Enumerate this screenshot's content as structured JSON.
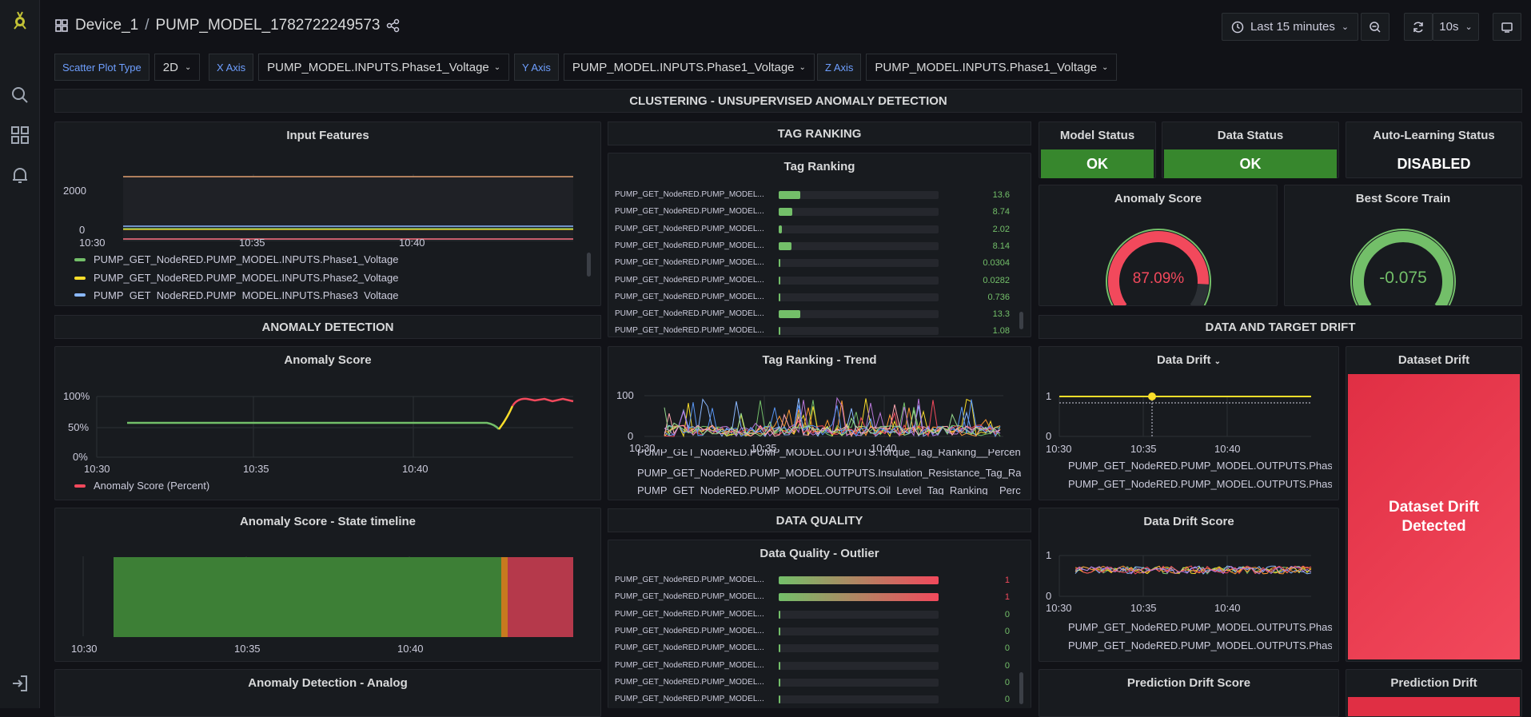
{
  "nav": {
    "breadcrumb_device": "Device_1",
    "breadcrumb_sep": "/",
    "breadcrumb_model": "PUMP_MODEL_1782722249573",
    "time_range": "Last 15 minutes",
    "refresh": "10s"
  },
  "vars": {
    "scatter_label": "Scatter Plot Type",
    "scatter_value": "2D",
    "x_label": "X Axis",
    "x_value": "PUMP_MODEL.INPUTS.Phase1_Voltage",
    "y_label": "Y Axis",
    "y_value": "PUMP_MODEL.INPUTS.Phase1_Voltage",
    "z_label": "Z Axis",
    "z_value": "PUMP_MODEL.INPUTS.Phase1_Voltage"
  },
  "rows": {
    "clustering": "CLUSTERING - UNSUPERVISED ANOMALY DETECTION",
    "tag_ranking": "TAG RANKING",
    "anomaly_detection": "ANOMALY DETECTION",
    "data_target_drift": "DATA AND TARGET DRIFT",
    "data_quality": "DATA QUALITY"
  },
  "panels": {
    "input_features": {
      "title": "Input Features",
      "y_ticks": [
        "2000",
        "0"
      ],
      "x_ticks": [
        "10:30",
        "10:35",
        "10:40"
      ],
      "legend": [
        {
          "label": "PUMP_GET_NodeRED.PUMP_MODEL.INPUTS.Phase1_Voltage",
          "color": "#73bf69"
        },
        {
          "label": "PUMP_GET_NodeRED.PUMP_MODEL.INPUTS.Phase2_Voltage",
          "color": "#fade2a"
        },
        {
          "label": "PUMP_GET_NodeRED.PUMP_MODEL.INPUTS.Phase3_Voltage",
          "color": "#8ab8ff"
        }
      ]
    },
    "tag_ranking": {
      "title": "Tag Ranking",
      "rows": [
        {
          "label": "PUMP_GET_NodeRED.PUMP_MODEL...",
          "value": "13.6",
          "fraction": 0.136
        },
        {
          "label": "PUMP_GET_NodeRED.PUMP_MODEL...",
          "value": "8.74",
          "fraction": 0.087
        },
        {
          "label": "PUMP_GET_NodeRED.PUMP_MODEL...",
          "value": "2.02",
          "fraction": 0.02
        },
        {
          "label": "PUMP_GET_NodeRED.PUMP_MODEL...",
          "value": "8.14",
          "fraction": 0.081
        },
        {
          "label": "PUMP_GET_NodeRED.PUMP_MODEL...",
          "value": "0.0304",
          "fraction": 0.003
        },
        {
          "label": "PUMP_GET_NodeRED.PUMP_MODEL...",
          "value": "0.0282",
          "fraction": 0.003
        },
        {
          "label": "PUMP_GET_NodeRED.PUMP_MODEL...",
          "value": "0.736",
          "fraction": 0.007
        },
        {
          "label": "PUMP_GET_NodeRED.PUMP_MODEL...",
          "value": "13.3",
          "fraction": 0.133
        },
        {
          "label": "PUMP_GET_NodeRED.PUMP_MODEL...",
          "value": "1.08",
          "fraction": 0.011
        }
      ]
    },
    "model_status": {
      "title": "Model Status",
      "value": "OK"
    },
    "data_status": {
      "title": "Data Status",
      "value": "OK"
    },
    "auto_learning": {
      "title": "Auto-Learning Status",
      "value": "DISABLED"
    },
    "anomaly_gauge": {
      "title": "Anomaly Score",
      "value": "87.09%",
      "fraction": 0.8709,
      "color": "#f2495c"
    },
    "best_score": {
      "title": "Best Score Train",
      "value": "-0.075",
      "fraction": 1.0,
      "color": "#73bf69"
    },
    "anomaly_score": {
      "title": "Anomaly Score",
      "y_ticks": [
        "100%",
        "50%",
        "0%"
      ],
      "x_ticks": [
        "10:30",
        "10:35",
        "10:40"
      ],
      "legend": "Anomaly Score (Percent)",
      "color": "#f2495c"
    },
    "tag_trend": {
      "title": "Tag Ranking - Trend",
      "y_ticks": [
        "100",
        "0"
      ],
      "x_ticks": [
        "10:30",
        "10:35",
        "10:40"
      ],
      "legend": [
        {
          "label": "PUMP_GET_NodeRED.PUMP_MODEL.OUTPUTS.Torque_Tag_Ranking__Percent",
          "color": "#f2495c"
        },
        {
          "label": "PUMP_GET_NodeRED.PUMP_MODEL.OUTPUTS.Insulation_Resistance_Tag_Ranking",
          "color": "#8ab8ff"
        },
        {
          "label": "PUMP_GET_NodeRED.PUMP_MODEL.OUTPUTS.Oil_Level_Tag_Ranking__Percent",
          "color": "#ffa6b0"
        }
      ]
    },
    "data_drift": {
      "title": "Data Drift",
      "y_ticks": [
        "1",
        "0"
      ],
      "x_ticks": [
        "10:30",
        "10:35",
        "10:40"
      ],
      "legend": [
        {
          "label": "PUMP_GET_NodeRED.PUMP_MODEL.OUTPUTS.Phase",
          "color": "#73bf69"
        },
        {
          "label": "PUMP_GET_NodeRED.PUMP_MODEL.OUTPUTS.Phase",
          "color": "#fade2a"
        }
      ]
    },
    "dataset_drift": {
      "title": "Dataset Drift",
      "value": "Dataset Drift Detected"
    },
    "state_timeline": {
      "title": "Anomaly Score - State timeline",
      "x_ticks": [
        "10:30",
        "10:35",
        "10:40"
      ]
    },
    "dq_outlier": {
      "title": "Data Quality - Outlier",
      "rows": [
        {
          "label": "PUMP_GET_NodeRED.PUMP_MODEL...",
          "value": "1",
          "fraction": 1.0
        },
        {
          "label": "PUMP_GET_NodeRED.PUMP_MODEL...",
          "value": "1",
          "fraction": 1.0
        },
        {
          "label": "PUMP_GET_NodeRED.PUMP_MODEL...",
          "value": "0",
          "fraction": 0
        },
        {
          "label": "PUMP_GET_NodeRED.PUMP_MODEL...",
          "value": "0",
          "fraction": 0
        },
        {
          "label": "PUMP_GET_NodeRED.PUMP_MODEL...",
          "value": "0",
          "fraction": 0
        },
        {
          "label": "PUMP_GET_NodeRED.PUMP_MODEL...",
          "value": "0",
          "fraction": 0
        },
        {
          "label": "PUMP_GET_NodeRED.PUMP_MODEL...",
          "value": "0",
          "fraction": 0
        },
        {
          "label": "PUMP_GET_NodeRED.PUMP_MODEL...",
          "value": "0",
          "fraction": 0
        }
      ]
    },
    "drift_score": {
      "title": "Data Drift Score",
      "y_ticks": [
        "1",
        "0"
      ],
      "x_ticks": [
        "10:30",
        "10:35",
        "10:40"
      ],
      "legend": [
        {
          "label": "PUMP_GET_NodeRED.PUMP_MODEL.OUTPUTS.Phase",
          "color": "#73bf69"
        },
        {
          "label": "PUMP_GET_NodeRED.PUMP_MODEL.OUTPUTS.Phase",
          "color": "#fade2a"
        }
      ]
    },
    "analog": {
      "title": "Anomaly Detection - Analog"
    },
    "pred_drift_score": {
      "title": "Prediction Drift Score"
    },
    "pred_drift": {
      "title": "Prediction Drift"
    }
  },
  "icons": [
    "grafana-logo-icon",
    "search-icon",
    "dashboards-icon",
    "alert-bell-icon",
    "sign-in-icon",
    "apps-grid-icon",
    "share-icon",
    "clock-icon",
    "zoom-out-icon",
    "refresh-icon",
    "tv-mode-icon"
  ]
}
